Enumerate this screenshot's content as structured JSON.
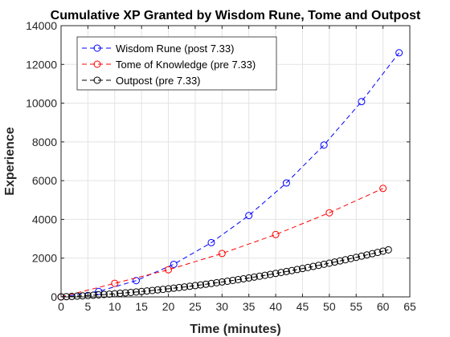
{
  "chart_data": {
    "type": "line",
    "title": "Cumulative XP Granted by Wisdom Rune, Tome and Outpost",
    "xlabel": "Time (minutes)",
    "ylabel": "Experience",
    "xlim": [
      0,
      65
    ],
    "ylim": [
      0,
      14000
    ],
    "xticks": [
      0,
      5,
      10,
      15,
      20,
      25,
      30,
      35,
      40,
      45,
      50,
      55,
      60,
      65
    ],
    "yticks": [
      0,
      2000,
      4000,
      6000,
      8000,
      10000,
      12000,
      14000
    ],
    "grid": true,
    "legend_position": "top-left",
    "series": [
      {
        "name": "Wisdom Rune (post 7.33)",
        "color": "#0000ff",
        "x": [
          0,
          7,
          14,
          21,
          28,
          35,
          42,
          49,
          56,
          63
        ],
        "y": [
          0,
          280,
          840,
          1680,
          2800,
          4200,
          5880,
          7840,
          10080,
          12600
        ]
      },
      {
        "name": "Tome of Knowledge (pre 7.33)",
        "color": "#ff0000",
        "x": [
          0,
          10,
          20,
          30,
          40,
          50,
          60
        ],
        "y": [
          0,
          700,
          1400,
          2240,
          3220,
          4340,
          5600
        ]
      },
      {
        "name": "Outpost (pre 7.33)",
        "color": "#000000",
        "x": [
          0,
          1,
          2,
          3,
          4,
          5,
          6,
          7,
          8,
          9,
          10,
          11,
          12,
          13,
          14,
          15,
          16,
          17,
          18,
          19,
          20,
          21,
          22,
          23,
          24,
          25,
          26,
          27,
          28,
          29,
          30,
          31,
          32,
          33,
          34,
          35,
          36,
          37,
          38,
          39,
          40,
          41,
          42,
          43,
          44,
          45,
          46,
          47,
          48,
          49,
          50,
          51,
          52,
          53,
          54,
          55,
          56,
          57,
          58,
          59,
          60,
          61
        ],
        "y": [
          0,
          12,
          25,
          39,
          54,
          70,
          86,
          104,
          122,
          142,
          162,
          184,
          206,
          229,
          254,
          279,
          305,
          332,
          360,
          389,
          419,
          450,
          482,
          514,
          548,
          583,
          618,
          654,
          692,
          730,
          769,
          809,
          850,
          891,
          934,
          978,
          1022,
          1067,
          1114,
          1161,
          1209,
          1258,
          1308,
          1359,
          1411,
          1464,
          1517,
          1572,
          1627,
          1683,
          1741,
          1799,
          1858,
          1917,
          1978,
          2040,
          2102,
          2166,
          2230,
          2295,
          2362,
          2429
        ]
      }
    ]
  }
}
